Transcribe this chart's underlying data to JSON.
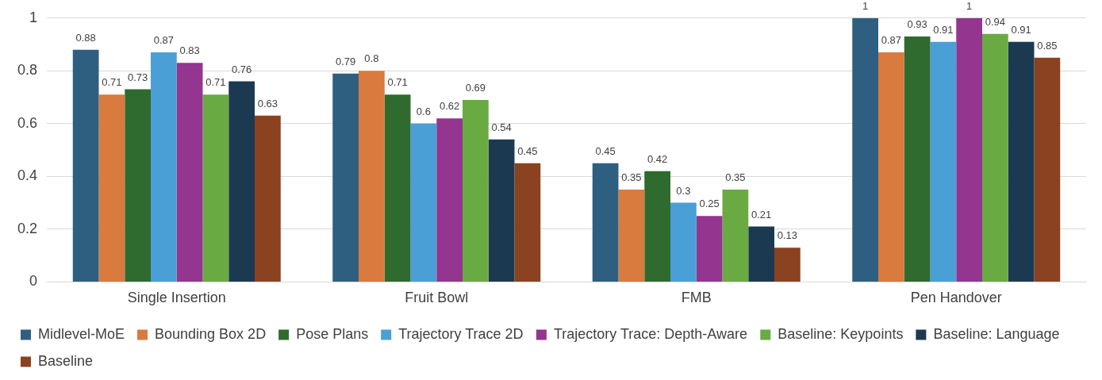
{
  "chart_data": {
    "type": "bar",
    "categories": [
      "Single Insertion",
      "Fruit Bowl",
      "FMB",
      "Pen Handover"
    ],
    "series": [
      {
        "name": "Midlevel-MoE",
        "color": "#2e5f80",
        "values": [
          0.88,
          0.79,
          0.45,
          1
        ]
      },
      {
        "name": "Bounding Box 2D",
        "color": "#d97a3f",
        "values": [
          0.71,
          0.8,
          0.35,
          0.87
        ]
      },
      {
        "name": "Pose Plans",
        "color": "#2f6b2f",
        "values": [
          0.73,
          0.71,
          0.42,
          0.93
        ]
      },
      {
        "name": "Trajectory Trace 2D",
        "color": "#4aa0d6",
        "values": [
          0.87,
          0.6,
          0.3,
          0.91
        ]
      },
      {
        "name": "Trajectory Trace: Depth-Aware",
        "color": "#943590",
        "values": [
          0.83,
          0.62,
          0.25,
          1
        ]
      },
      {
        "name": "Baseline: Keypoints",
        "color": "#6aaa43",
        "values": [
          0.71,
          0.69,
          0.35,
          0.94
        ]
      },
      {
        "name": "Baseline: Language",
        "color": "#1b3a52",
        "values": [
          0.76,
          0.54,
          0.21,
          0.91
        ]
      },
      {
        "name": "Baseline",
        "color": "#8b4220",
        "values": [
          0.63,
          0.45,
          0.13,
          0.85
        ]
      }
    ],
    "ylim": [
      0,
      1
    ],
    "yticks": [
      0,
      0.2,
      0.4,
      0.6,
      0.8,
      1
    ],
    "grid": "y",
    "legend": "bottom",
    "data_labels": true
  }
}
